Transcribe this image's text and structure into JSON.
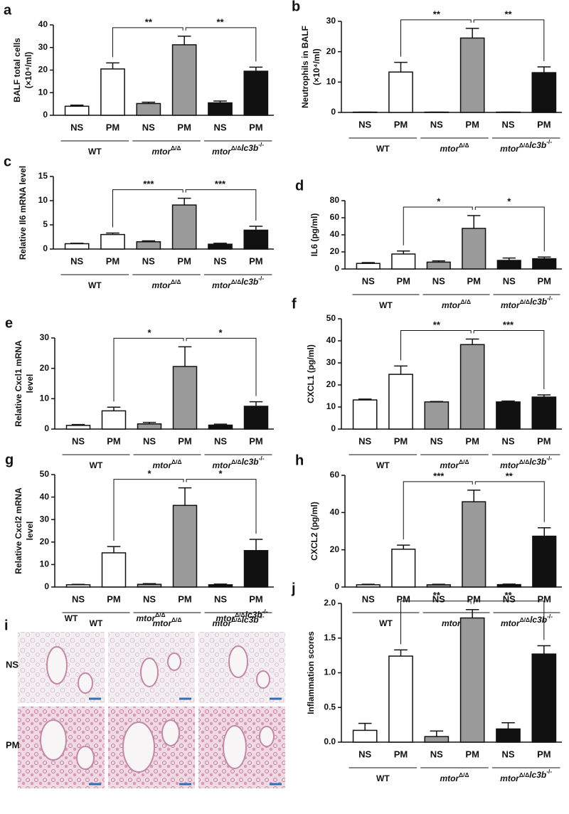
{
  "chart_data": [
    {
      "type": "bar",
      "letter": "a",
      "ylabel": [
        "BALF total cells",
        "(×10⁴/ml)"
      ],
      "categories": [
        "NS",
        "PM",
        "NS",
        "PM",
        "NS",
        "PM"
      ],
      "groups": [
        [
          {
            "text": "WT"
          }
        ],
        [
          {
            "text": "mtor",
            "sup": "Δ/Δ"
          }
        ],
        [
          {
            "text": "mtor",
            "sup": "Δ/Δ"
          },
          {
            "text": "lc3b",
            "sup": "-/-"
          }
        ]
      ],
      "values": [
        4,
        20.5,
        5.2,
        31.2,
        5.5,
        19.5
      ],
      "errors": [
        0.5,
        2.7,
        0.6,
        3.8,
        0.8,
        1.8
      ],
      "colors": [
        "#ffffff",
        "#ffffff",
        "#9a9a9a",
        "#9a9a9a",
        "#111111",
        "#111111"
      ],
      "ylim": [
        0,
        40
      ],
      "yticks": [
        0,
        10,
        20,
        30,
        40
      ],
      "significance": [
        {
          "from": 1,
          "to": 3,
          "label": "**"
        },
        {
          "from": 3,
          "to": 5,
          "label": "**"
        }
      ]
    },
    {
      "type": "bar",
      "letter": "b",
      "ylabel": [
        "Neutrophils in BALF",
        "(×10⁴/ml)"
      ],
      "categories": [
        "NS",
        "PM",
        "NS",
        "PM",
        "NS",
        "PM"
      ],
      "groups": [
        [
          {
            "text": "WT"
          }
        ],
        [
          {
            "text": "mtor",
            "sup": "Δ/Δ"
          }
        ],
        [
          {
            "text": "mtor",
            "sup": "Δ/Δ"
          },
          {
            "text": "lc3b",
            "sup": "-/-"
          }
        ]
      ],
      "values": [
        0.1,
        13.3,
        0.1,
        24.5,
        0.1,
        13.1
      ],
      "errors": [
        0,
        3.2,
        0,
        3.2,
        0,
        1.9
      ],
      "colors": [
        "#ffffff",
        "#ffffff",
        "#9a9a9a",
        "#9a9a9a",
        "#111111",
        "#111111"
      ],
      "ylim": [
        0,
        30
      ],
      "yticks": [
        0,
        10,
        20,
        30
      ],
      "significance": [
        {
          "from": 1,
          "to": 3,
          "label": "**"
        },
        {
          "from": 3,
          "to": 5,
          "label": "**"
        }
      ]
    },
    {
      "type": "bar",
      "letter": "c",
      "ylabel": [
        "Relative Il6 mRNA level"
      ],
      "categories": [
        "NS",
        "PM",
        "NS",
        "PM",
        "NS",
        "PM"
      ],
      "groups": [
        [
          {
            "text": "WT"
          }
        ],
        [
          {
            "text": "mtor",
            "sup": "Δ/Δ"
          }
        ],
        [
          {
            "text": "mtor",
            "sup": "Δ/Δ"
          },
          {
            "text": "lc3b",
            "sup": "-/-"
          }
        ]
      ],
      "values": [
        1.1,
        3.0,
        1.5,
        9.1,
        1.0,
        3.9
      ],
      "errors": [
        0.1,
        0.3,
        0.2,
        1.4,
        0.2,
        0.8
      ],
      "colors": [
        "#ffffff",
        "#ffffff",
        "#9a9a9a",
        "#9a9a9a",
        "#111111",
        "#111111"
      ],
      "ylim": [
        0,
        15
      ],
      "yticks": [
        0,
        5,
        10,
        15
      ],
      "significance": [
        {
          "from": 1,
          "to": 3,
          "label": "***"
        },
        {
          "from": 3,
          "to": 5,
          "label": "***"
        }
      ]
    },
    {
      "type": "bar",
      "letter": "d",
      "ylabel": [
        "IL6 (pg/ml)"
      ],
      "categories": [
        "NS",
        "PM",
        "NS",
        "PM",
        "NS",
        "PM"
      ],
      "groups": [
        [
          {
            "text": "WT"
          }
        ],
        [
          {
            "text": "mtor",
            "sup": "Δ/Δ"
          }
        ],
        [
          {
            "text": "mtor",
            "sup": "Δ/Δ"
          },
          {
            "text": "lc3b",
            "sup": "-/-"
          }
        ]
      ],
      "values": [
        6.5,
        17.5,
        8,
        47.5,
        10,
        12
      ],
      "errors": [
        1,
        3.5,
        1.5,
        15,
        2.8,
        2
      ],
      "colors": [
        "#ffffff",
        "#ffffff",
        "#9a9a9a",
        "#9a9a9a",
        "#111111",
        "#111111"
      ],
      "ylim": [
        0,
        80
      ],
      "yticks": [
        0,
        20,
        40,
        60,
        80
      ],
      "significance": [
        {
          "from": 1,
          "to": 3,
          "label": "*"
        },
        {
          "from": 3,
          "to": 5,
          "label": "*"
        }
      ]
    },
    {
      "type": "bar",
      "letter": "e",
      "ylabel": [
        "Relative Cxcl1 mRNA",
        "level"
      ],
      "categories": [
        "NS",
        "PM",
        "NS",
        "PM",
        "NS",
        "PM"
      ],
      "groups": [
        [
          {
            "text": "WT"
          }
        ],
        [
          {
            "text": "mtor",
            "sup": "Δ/Δ"
          }
        ],
        [
          {
            "text": "mtor",
            "sup": "Δ/Δ"
          },
          {
            "text": "lc3b",
            "sup": "-/-"
          }
        ]
      ],
      "values": [
        1.2,
        6,
        1.7,
        20.6,
        1.3,
        7.5
      ],
      "errors": [
        0.3,
        1.2,
        0.5,
        6.5,
        0.3,
        1.5
      ],
      "colors": [
        "#ffffff",
        "#ffffff",
        "#9a9a9a",
        "#9a9a9a",
        "#111111",
        "#111111"
      ],
      "ylim": [
        0,
        30
      ],
      "yticks": [
        0,
        10,
        20,
        30
      ],
      "significance": [
        {
          "from": 1,
          "to": 3,
          "label": "*"
        },
        {
          "from": 3,
          "to": 5,
          "label": "*"
        }
      ]
    },
    {
      "type": "bar",
      "letter": "f",
      "ylabel": [
        "CXCL1 (pg/ml)"
      ],
      "categories": [
        "NS",
        "PM",
        "NS",
        "PM",
        "NS",
        "PM"
      ],
      "groups": [
        [
          {
            "text": "WT"
          }
        ],
        [
          {
            "text": "mtor",
            "sup": "Δ/Δ"
          }
        ],
        [
          {
            "text": "mtor",
            "sup": "Δ/Δ"
          },
          {
            "text": "lc3b",
            "sup": "-/-"
          }
        ]
      ],
      "values": [
        13.2,
        24.8,
        12.3,
        38.3,
        12.3,
        14.5
      ],
      "errors": [
        0.4,
        3.8,
        0.2,
        2.5,
        0.4,
        1
      ],
      "colors": [
        "#ffffff",
        "#ffffff",
        "#9a9a9a",
        "#9a9a9a",
        "#111111",
        "#111111"
      ],
      "ylim": [
        0,
        50
      ],
      "yticks": [
        0,
        10,
        20,
        30,
        40,
        50
      ],
      "significance": [
        {
          "from": 1,
          "to": 3,
          "label": "**"
        },
        {
          "from": 3,
          "to": 5,
          "label": "***"
        }
      ]
    },
    {
      "type": "bar",
      "letter": "g",
      "ylabel": [
        "Relative Cxcl2 mRNA",
        "level"
      ],
      "categories": [
        "NS",
        "PM",
        "NS",
        "PM",
        "NS",
        "PM"
      ],
      "groups": [
        [
          {
            "text": "WT"
          }
        ],
        [
          {
            "text": "mtor",
            "sup": "Δ/Δ"
          }
        ],
        [
          {
            "text": "mtor",
            "sup": "Δ/Δ"
          },
          {
            "text": "lc3b",
            "sup": "-/-"
          }
        ]
      ],
      "values": [
        1,
        15.2,
        1.2,
        36.3,
        1,
        16.2
      ],
      "errors": [
        0.2,
        2.8,
        0.3,
        7.8,
        0.3,
        5
      ],
      "colors": [
        "#ffffff",
        "#ffffff",
        "#9a9a9a",
        "#9a9a9a",
        "#111111",
        "#111111"
      ],
      "ylim": [
        0,
        50
      ],
      "yticks": [
        0,
        10,
        20,
        30,
        40,
        50
      ],
      "significance": [
        {
          "from": 1,
          "to": 3,
          "label": "*"
        },
        {
          "from": 3,
          "to": 5,
          "label": "*"
        }
      ]
    },
    {
      "type": "bar",
      "letter": "h",
      "ylabel": [
        "CXCL2 (pg/ml)"
      ],
      "categories": [
        "NS",
        "PM",
        "NS",
        "PM",
        "NS",
        "PM"
      ],
      "groups": [
        [
          {
            "text": "WT"
          }
        ],
        [
          {
            "text": "mtor",
            "sup": "Δ/Δ"
          }
        ],
        [
          {
            "text": "mtor",
            "sup": "Δ/Δ"
          },
          {
            "text": "lc3b",
            "sup": "-/-"
          }
        ]
      ],
      "values": [
        1.2,
        20.3,
        1.2,
        45.8,
        1.3,
        27.3
      ],
      "errors": [
        0.3,
        2.2,
        0.3,
        6.2,
        0.3,
        4.5
      ],
      "colors": [
        "#ffffff",
        "#ffffff",
        "#9a9a9a",
        "#9a9a9a",
        "#111111",
        "#111111"
      ],
      "ylim": [
        0,
        60
      ],
      "yticks": [
        0,
        20,
        40,
        60
      ],
      "significance": [
        {
          "from": 1,
          "to": 3,
          "label": "***"
        },
        {
          "from": 3,
          "to": 5,
          "label": "**"
        }
      ]
    },
    {
      "type": "bar",
      "letter": "j",
      "ylabel": [
        "Inflammation scores"
      ],
      "categories": [
        "NS",
        "PM",
        "NS",
        "PM",
        "NS",
        "PM"
      ],
      "groups": [
        [
          {
            "text": "WT"
          }
        ],
        [
          {
            "text": "mtor",
            "sup": "Δ/Δ"
          }
        ],
        [
          {
            "text": "mtor",
            "sup": "Δ/Δ"
          },
          {
            "text": "lc3b",
            "sup": "-/-"
          }
        ]
      ],
      "values": [
        0.17,
        1.24,
        0.08,
        1.79,
        0.19,
        1.27
      ],
      "errors": [
        0.1,
        0.09,
        0.08,
        0.12,
        0.09,
        0.12
      ],
      "colors": [
        "#ffffff",
        "#ffffff",
        "#9a9a9a",
        "#9a9a9a",
        "#111111",
        "#111111"
      ],
      "ylim": [
        0,
        2
      ],
      "yticks": [
        {
          "value": 0,
          "label": "0.0"
        },
        {
          "value": 0.5,
          "label": "0.5"
        },
        {
          "value": 1,
          "label": "1.0"
        },
        {
          "value": 1.5,
          "label": "1.5"
        },
        {
          "value": 2,
          "label": "2.0"
        }
      ],
      "significance": [
        {
          "from": 1,
          "to": 3,
          "label": "**"
        },
        {
          "from": 3,
          "to": 5,
          "label": "**"
        }
      ]
    }
  ],
  "histology": {
    "letter": "i",
    "columns": [
      [
        {
          "text": "WT"
        }
      ],
      [
        {
          "text": "mtor",
          "sup": "Δ/Δ"
        }
      ],
      [
        {
          "text": "mtor",
          "sup": "Δ/Δ"
        },
        {
          "text": "lc3b",
          "sup": "-/-"
        }
      ]
    ],
    "rows": [
      "NS",
      "PM"
    ]
  }
}
